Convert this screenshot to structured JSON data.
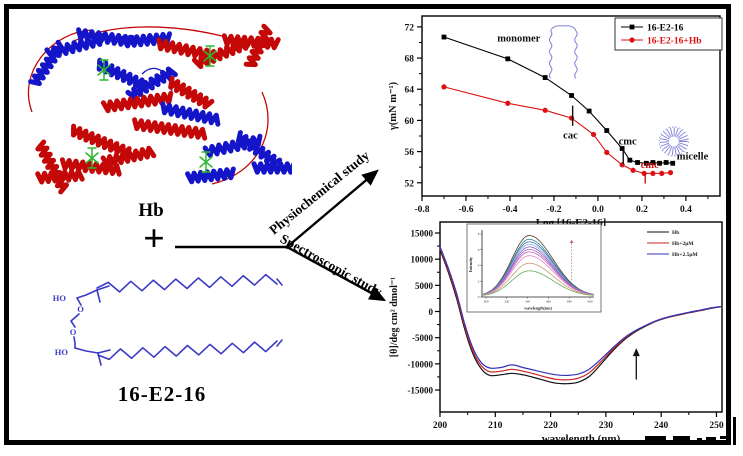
{
  "canvas": {
    "background": "#ffffff",
    "frame_color": "#000000"
  },
  "left_panel": {
    "hb_label": "Hb",
    "plus_sign": "+",
    "surfactant_label": "16-E2-16",
    "structure_color": "#3b3bc4",
    "structure_labels": {
      "ho_top": "HO",
      "o_upper": "O",
      "o_lower": "O",
      "ho_bottom": "HO"
    },
    "protein_colors": {
      "helix_red": "#c40808",
      "helix_blue": "#1414c8",
      "heme_green": "#2db82d"
    },
    "arrows": {
      "top_label": "Physiochemical study",
      "bottom_label": "Spectroscopic study",
      "color": "#000000"
    }
  },
  "chart_data": [
    {
      "id": "surface-tension",
      "type": "line",
      "xlabel": "Log [16-E2-16]",
      "ylabel": "γ(mN m⁻¹)",
      "xlim": [
        -0.8,
        0.555
      ],
      "ylim": [
        50.3,
        73.4
      ],
      "xticks": [
        -0.8,
        -0.6,
        -0.4,
        -0.2,
        0.0,
        0.2,
        0.4
      ],
      "yticks": [
        52,
        56,
        60,
        64,
        68,
        72
      ],
      "grid": false,
      "legend_position": "top-right-box",
      "doodle_color": "#8080d8",
      "series": [
        {
          "name": "16-E2-16",
          "color": "#000000",
          "marker": "square",
          "x": [
            -0.7,
            -0.41,
            -0.24,
            -0.12,
            -0.04,
            0.04,
            0.11,
            0.145,
            0.18,
            0.22,
            0.25,
            0.28,
            0.31,
            0.34
          ],
          "y": [
            70.7,
            67.9,
            65.5,
            63.2,
            61.2,
            58.7,
            56.4,
            54.9,
            54.6,
            54.5,
            54.6,
            54.5,
            54.6,
            54.5
          ]
        },
        {
          "name": "16-E2-16+Hb",
          "color": "#dd1111",
          "marker": "circle",
          "x": [
            -0.7,
            -0.41,
            -0.24,
            -0.12,
            -0.02,
            0.04,
            0.11,
            0.16,
            0.21,
            0.25,
            0.29,
            0.33
          ],
          "y": [
            64.3,
            62.2,
            61.3,
            60.3,
            58.2,
            55.9,
            54.3,
            53.6,
            53.2,
            53.2,
            53.2,
            53.3
          ]
        }
      ],
      "annotations": [
        {
          "text": "monomer",
          "x": -0.36,
          "y": 70.1,
          "color": "#111111"
        },
        {
          "text": "cac",
          "x": -0.125,
          "y": 57.7,
          "color": "#111111"
        },
        {
          "text": "cmc",
          "x": 0.135,
          "y": 56.9,
          "color": "#111111"
        },
        {
          "text": "cmc",
          "x": 0.235,
          "y": 53.9,
          "color": "#cc1111"
        },
        {
          "text": "micelle",
          "x": 0.43,
          "y": 55.0,
          "color": "#111111"
        }
      ],
      "marker_ticks": [
        {
          "x": -0.115,
          "y1": 59.3,
          "y2": 61.9,
          "color": "#111111"
        },
        {
          "x": 0.115,
          "y1": 54.4,
          "y2": 56.2,
          "color": "#111111"
        },
        {
          "x": 0.215,
          "y1": 51.9,
          "y2": 53.4,
          "color": "#cc1111"
        }
      ]
    },
    {
      "id": "cd-spectra",
      "type": "line",
      "xlabel": "wavelength (nm)",
      "ylabel": "[θ]/deg cm² dmol⁻¹",
      "xlim": [
        200,
        251
      ],
      "ylim": [
        -19200,
        17100
      ],
      "xticks": [
        200,
        210,
        220,
        230,
        240,
        250
      ],
      "yticks": [
        -15000,
        -10000,
        -5000,
        0,
        5000,
        10000,
        15000
      ],
      "grid": false,
      "legend_position": "top-right",
      "x_common": [
        200,
        201.5,
        203,
        204.5,
        206,
        207.5,
        209,
        211,
        213,
        215,
        217,
        219,
        221,
        223,
        225,
        227,
        229,
        231,
        233,
        235,
        237,
        239,
        241,
        243,
        245,
        247,
        249,
        250.8
      ],
      "series": [
        {
          "name": "Hb",
          "color": "#111111",
          "y": [
            11800,
            7500,
            2500,
            -3500,
            -8200,
            -11000,
            -12200,
            -12100,
            -11800,
            -12100,
            -12600,
            -13200,
            -13700,
            -13800,
            -13500,
            -12400,
            -10200,
            -7800,
            -5700,
            -4100,
            -2900,
            -1900,
            -1200,
            -700,
            -250,
            150,
            600,
            900
          ]
        },
        {
          "name": "Hb+2μM",
          "color": "#cc2222",
          "y": [
            12100,
            7900,
            3000,
            -3000,
            -7700,
            -10400,
            -11500,
            -11400,
            -11050,
            -11400,
            -11900,
            -12500,
            -12950,
            -13050,
            -12750,
            -11700,
            -9700,
            -7500,
            -5500,
            -3950,
            -2820,
            -1850,
            -1150,
            -650,
            -200,
            200,
            640,
            930
          ]
        },
        {
          "name": "Hb+2.5μM",
          "color": "#3333bb",
          "y": [
            12400,
            8300,
            3500,
            -2500,
            -7100,
            -9800,
            -10800,
            -10700,
            -10200,
            -10700,
            -11200,
            -11700,
            -12100,
            -12200,
            -11950,
            -11000,
            -9200,
            -7200,
            -5300,
            -3850,
            -2750,
            -1800,
            -1100,
            -600,
            -150,
            250,
            680,
            960
          ]
        }
      ],
      "arrow": {
        "x": 235.5,
        "y_from": -13000,
        "y_to": -7000,
        "color": "#111111"
      },
      "inset": {
        "xlabel": "wavelength(nm)",
        "ylabel": "Intensity",
        "xtick_labels": [
          "300",
          "320",
          "340",
          "360",
          "380",
          "400"
        ],
        "ytick_labels": [
          "0",
          "2",
          "4",
          "6",
          "8"
        ],
        "arrow_direction": "up",
        "curves": [
          {
            "color": "#5a3820",
            "peak": 0.96
          },
          {
            "color": "#1f8a8a",
            "peak": 0.9
          },
          {
            "color": "#4466bb",
            "peak": 0.86
          },
          {
            "color": "#7fb2dd",
            "peak": 0.82
          },
          {
            "color": "#8855bb",
            "peak": 0.78
          },
          {
            "color": "#aa66cc",
            "peak": 0.74
          },
          {
            "color": "#c060b0",
            "peak": 0.7
          },
          {
            "color": "#dd88cc",
            "peak": 0.64
          },
          {
            "color": "#c89b70",
            "peak": 0.52
          },
          {
            "color": "#6faa5f",
            "peak": 0.4
          }
        ]
      }
    }
  ]
}
